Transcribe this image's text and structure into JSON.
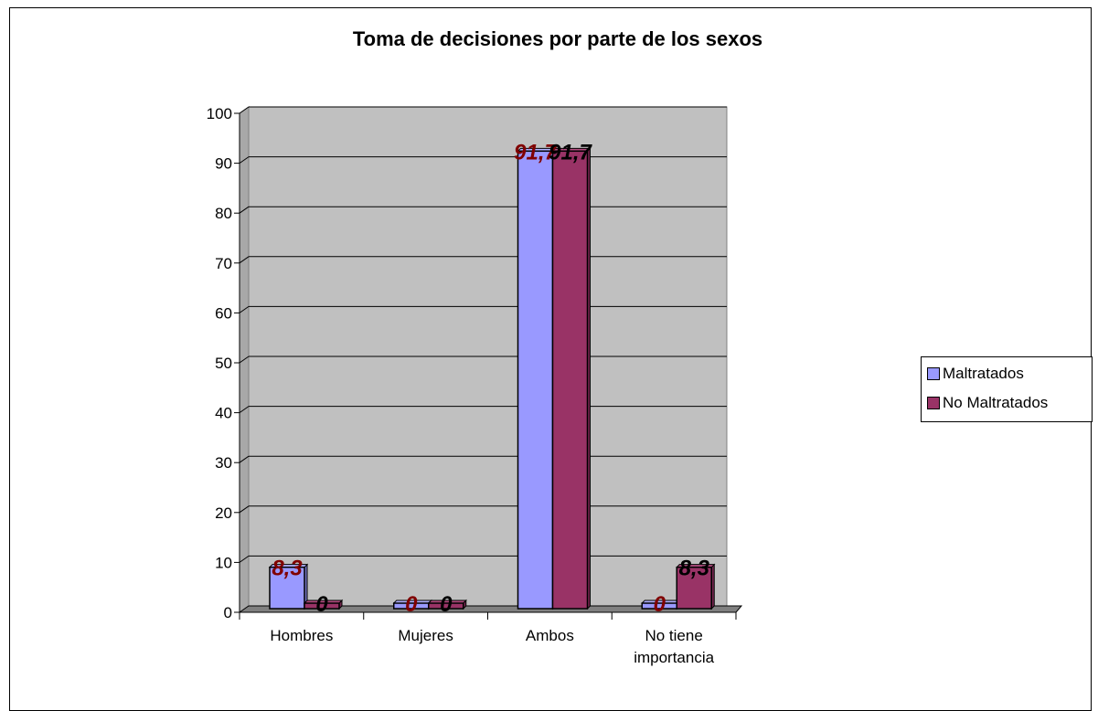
{
  "chart_data": {
    "type": "bar",
    "title": "Toma de decisiones por parte de los sexos",
    "categories": [
      "Hombres",
      "Mujeres",
      "Ambos",
      "No tiene importancia"
    ],
    "category_lines": [
      [
        "Hombres"
      ],
      [
        "Mujeres"
      ],
      [
        "Ambos"
      ],
      [
        "No tiene",
        "importancia"
      ]
    ],
    "series": [
      {
        "name": "Maltratados",
        "values": [
          8.3,
          0,
          91.7,
          0
        ],
        "value_labels": [
          "8,3",
          "0",
          "91,7",
          "0"
        ]
      },
      {
        "name": "No Maltratados",
        "values": [
          0,
          0,
          91.7,
          8.3
        ],
        "value_labels": [
          "0",
          "0",
          "91,7",
          "8,3"
        ]
      }
    ],
    "ylim": [
      0,
      100
    ],
    "yticks": [
      0,
      10,
      20,
      30,
      40,
      50,
      60,
      70,
      80,
      90,
      100
    ],
    "grid": true,
    "legend_position": "right",
    "colors": {
      "series": [
        "#9999ff",
        "#993366"
      ],
      "data_labels": [
        "#800000",
        "#000000"
      ],
      "plot_wall": "#c0c0c0",
      "floor": "#808080"
    },
    "xlabel": "",
    "ylabel": ""
  }
}
